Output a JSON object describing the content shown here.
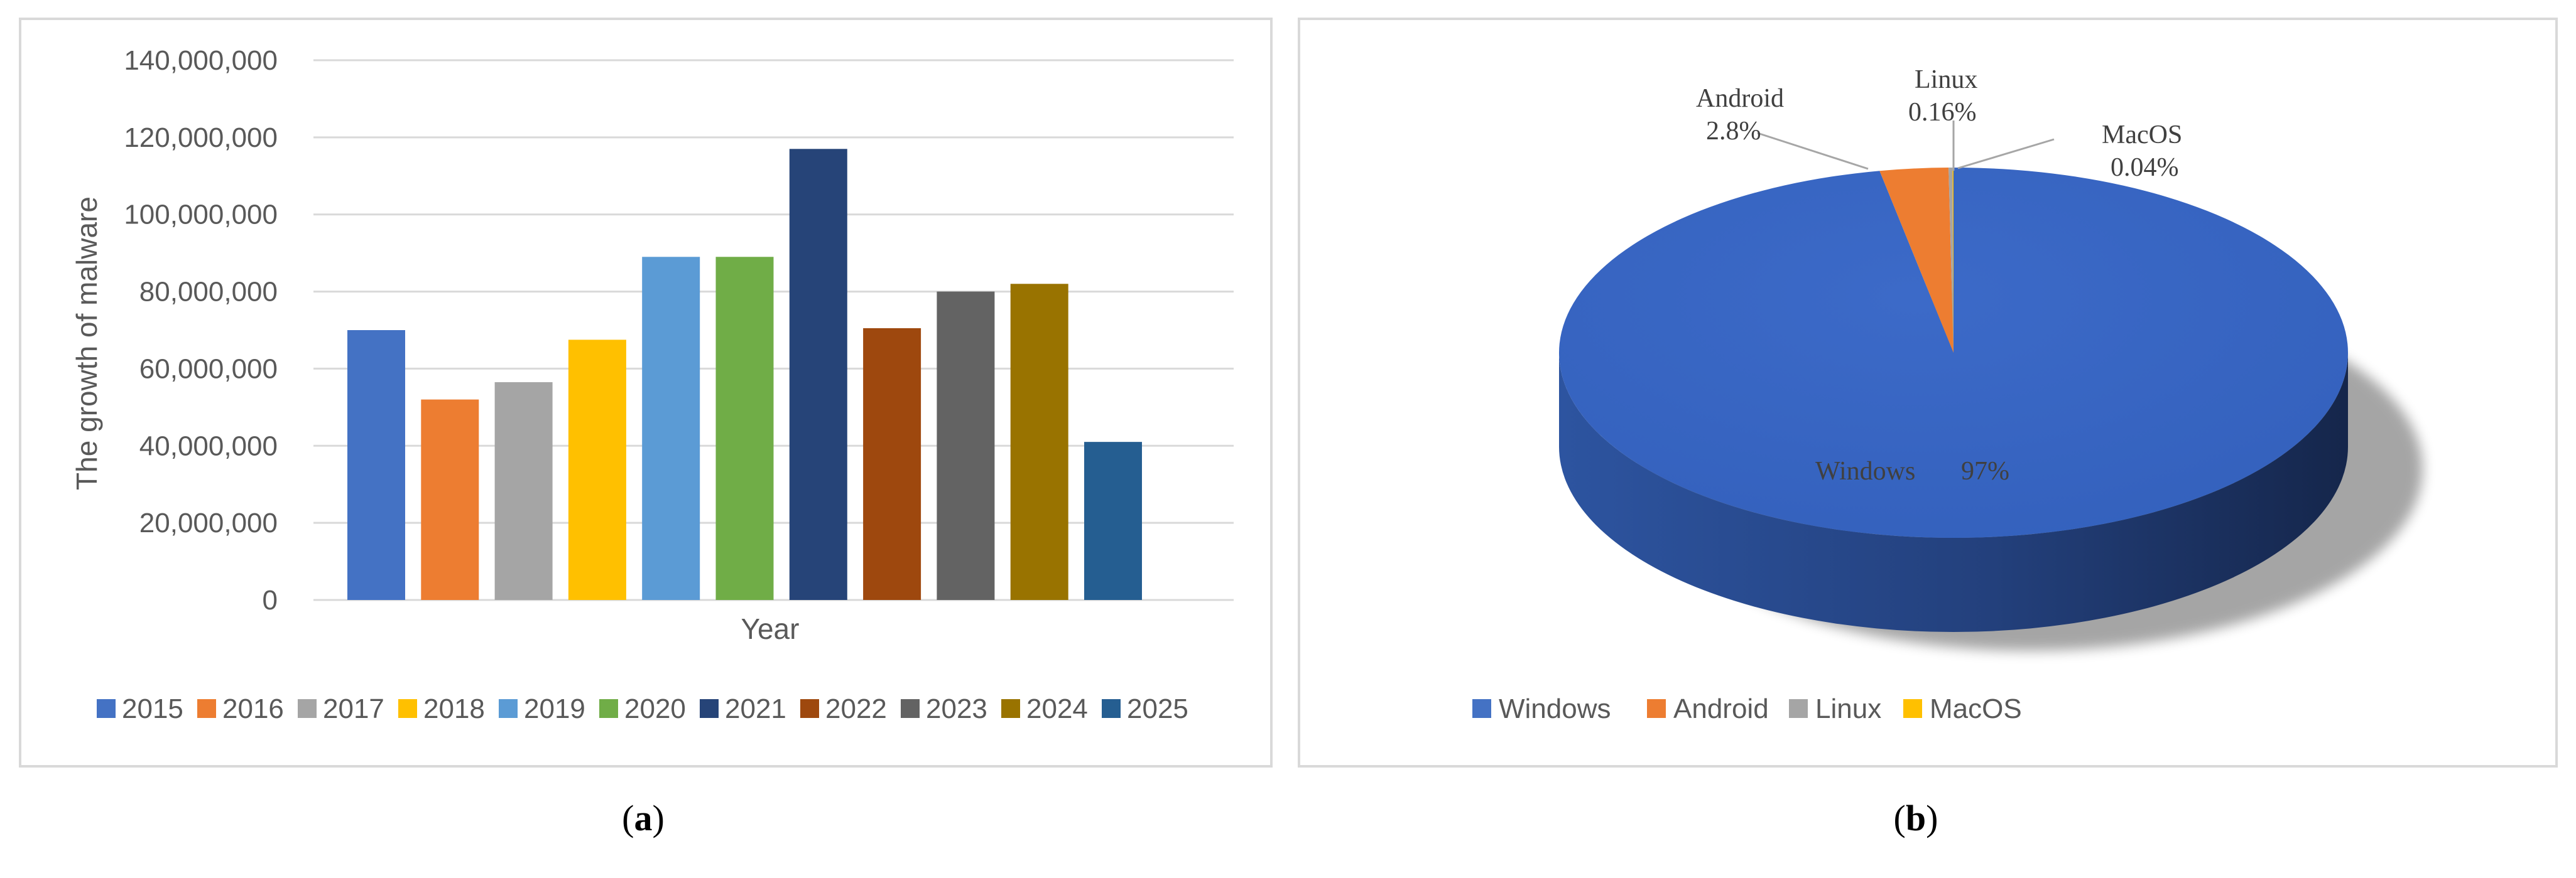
{
  "captions": {
    "a_letter": "a",
    "b_letter": "b"
  },
  "chart_data": [
    {
      "type": "bar",
      "xlabel": "Year",
      "ylabel": "The growth of malware",
      "ylim": [
        0,
        140000000
      ],
      "yticks": [
        "0",
        "20,000,000",
        "40,000,000",
        "60,000,000",
        "80,000,000",
        "100,000,000",
        "120,000,000",
        "140,000,000"
      ],
      "grid": true,
      "legend_position": "bottom",
      "categories": [
        "2015",
        "2016",
        "2017",
        "2018",
        "2019",
        "2020",
        "2021",
        "2022",
        "2023",
        "2024",
        "2025"
      ],
      "values": [
        70000000,
        52000000,
        56500000,
        67500000,
        89000000,
        89000000,
        117000000,
        70500000,
        80000000,
        82000000,
        41000000
      ],
      "colors": [
        "#4472c4",
        "#ed7d31",
        "#a5a5a5",
        "#ffc000",
        "#5b9bd5",
        "#70ad47",
        "#264478",
        "#9e480e",
        "#636363",
        "#997300",
        "#255e91"
      ]
    },
    {
      "type": "pie",
      "style": "3d",
      "legend_position": "bottom",
      "categories": [
        "Windows",
        "Android",
        "Linux",
        "MacOS"
      ],
      "values": [
        97,
        2.8,
        0.16,
        0.04
      ],
      "data_labels": [
        "97%",
        "2.8%",
        "0.16%",
        "0.04%"
      ],
      "colors": [
        "#4472c4",
        "#ed7d31",
        "#a5a5a5",
        "#ffc000"
      ]
    }
  ]
}
